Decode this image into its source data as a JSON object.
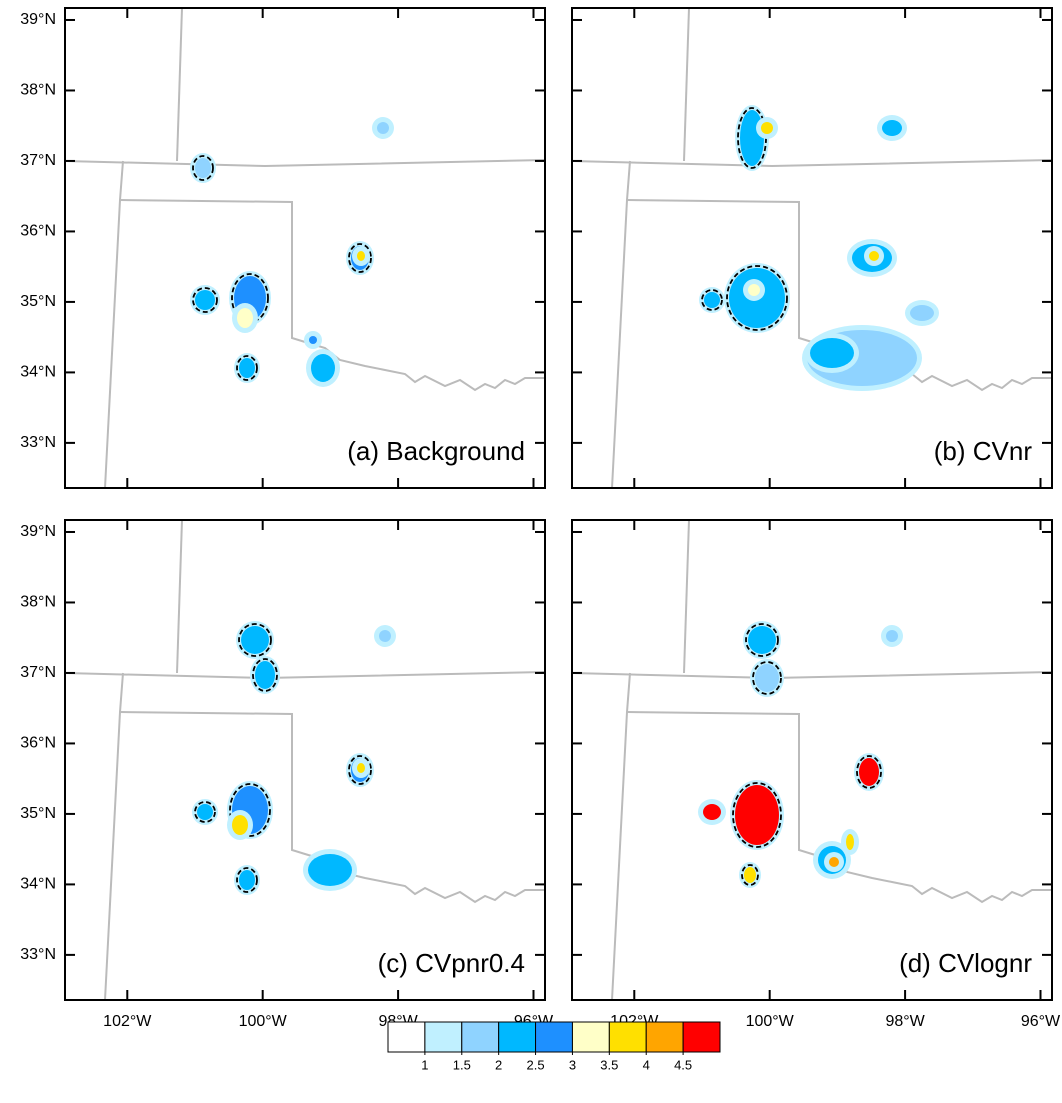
{
  "panels": [
    {
      "label": "(a) Background"
    },
    {
      "label": "(b) CVnr"
    },
    {
      "label": "(c) CVpnr0.4"
    },
    {
      "label": "(d) CVlognr"
    }
  ],
  "xlim": [
    -102.92,
    -95.83
  ],
  "ylim": [
    32.36,
    39.17
  ],
  "lat_ticks": [
    {
      "value": 33,
      "label": "33°N"
    },
    {
      "value": 34,
      "label": "34°N"
    },
    {
      "value": 35,
      "label": "35°N"
    },
    {
      "value": 36,
      "label": "36°N"
    },
    {
      "value": 37,
      "label": "37°N"
    },
    {
      "value": 38,
      "label": "38°N"
    },
    {
      "value": 39,
      "label": "39°N"
    }
  ],
  "lon_ticks": [
    {
      "value": -102,
      "label": "102°W"
    },
    {
      "value": -100,
      "label": "100°W"
    },
    {
      "value": -98,
      "label": "98°W"
    },
    {
      "value": -96,
      "label": "96°W"
    }
  ],
  "colorbar": {
    "colors": [
      "#ffffff",
      "#c0f0ff",
      "#8fd3ff",
      "#00b8ff",
      "#1e90ff",
      "#ffffc8",
      "#ffe000",
      "#ffa500",
      "#ff0000"
    ],
    "ticks": [
      1,
      1.5,
      2,
      2.5,
      3,
      3.5,
      4,
      4.5
    ]
  }
}
